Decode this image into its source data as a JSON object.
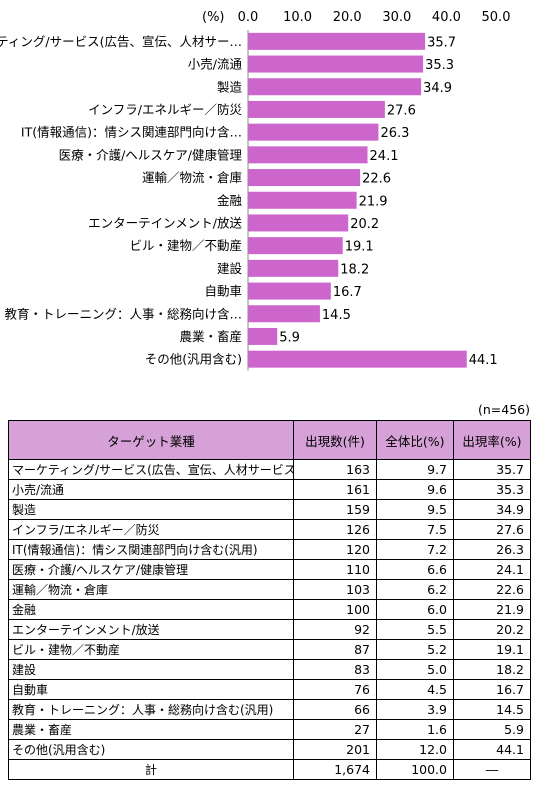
{
  "chart_data": {
    "type": "bar",
    "orientation": "horizontal",
    "unit_label": "(%)",
    "xlim": [
      0,
      50
    ],
    "xticks": [
      "0.0",
      "10.0",
      "20.0",
      "30.0",
      "40.0",
      "50.0"
    ],
    "categories": [
      "マーケティング/サービス(広告、宣伝、人材サー…",
      "小売/流通",
      "製造",
      "インフラ/エネルギー／防災",
      "IT(情報通信)：情シス関連部門向け含…",
      "医療・介護/ヘルスケア/健康管理",
      "運輸／物流・倉庫",
      "金融",
      "エンターテインメント/放送",
      "ビル・建物／不動産",
      "建設",
      "自動車",
      "教育・トレーニング：人事・総務向け含…",
      "農業・畜産",
      "その他(汎用含む)"
    ],
    "values": [
      35.7,
      35.3,
      34.9,
      27.6,
      26.3,
      24.1,
      22.6,
      21.9,
      20.2,
      19.1,
      18.2,
      16.7,
      14.5,
      5.9,
      44.1
    ],
    "value_labels": [
      "35.7",
      "35.3",
      "34.9",
      "27.6",
      "26.3",
      "24.1",
      "22.6",
      "21.9",
      "20.2",
      "19.1",
      "18.2",
      "16.7",
      "14.5",
      "5.9",
      "44.1"
    ],
    "bar_color": "#cc66cc"
  },
  "table": {
    "n_label": "(n=456)",
    "headers": [
      "ターゲット業種",
      "出現数(件)",
      "全体比(%)",
      "出現率(%)"
    ],
    "rows": [
      [
        "マーケティング/サービス(広告、宣伝、人材サービス含む)",
        "163",
        "9.7",
        "35.7"
      ],
      [
        "小売/流通",
        "161",
        "9.6",
        "35.3"
      ],
      [
        "製造",
        "159",
        "9.5",
        "34.9"
      ],
      [
        "インフラ/エネルギー／防災",
        "126",
        "7.5",
        "27.6"
      ],
      [
        "IT(情報通信)：情シス関連部門向け含む(汎用)",
        "120",
        "7.2",
        "26.3"
      ],
      [
        "医療・介護/ヘルスケア/健康管理",
        "110",
        "6.6",
        "24.1"
      ],
      [
        "運輸／物流・倉庫",
        "103",
        "6.2",
        "22.6"
      ],
      [
        "金融",
        "100",
        "6.0",
        "21.9"
      ],
      [
        "エンターテインメント/放送",
        "92",
        "5.5",
        "20.2"
      ],
      [
        "ビル・建物／不動産",
        "87",
        "5.2",
        "19.1"
      ],
      [
        "建設",
        "83",
        "5.0",
        "18.2"
      ],
      [
        "自動車",
        "76",
        "4.5",
        "16.7"
      ],
      [
        "教育・トレーニング：人事・総務向け含む(汎用)",
        "66",
        "3.9",
        "14.5"
      ],
      [
        "農業・畜産",
        "27",
        "1.6",
        "5.9"
      ],
      [
        "その他(汎用含む)",
        "201",
        "12.0",
        "44.1"
      ]
    ],
    "total": [
      "計",
      "1,674",
      "100.0",
      "―"
    ]
  },
  "colors": {
    "bar": "#cc66cc",
    "table_header": "#d6a1d6"
  }
}
